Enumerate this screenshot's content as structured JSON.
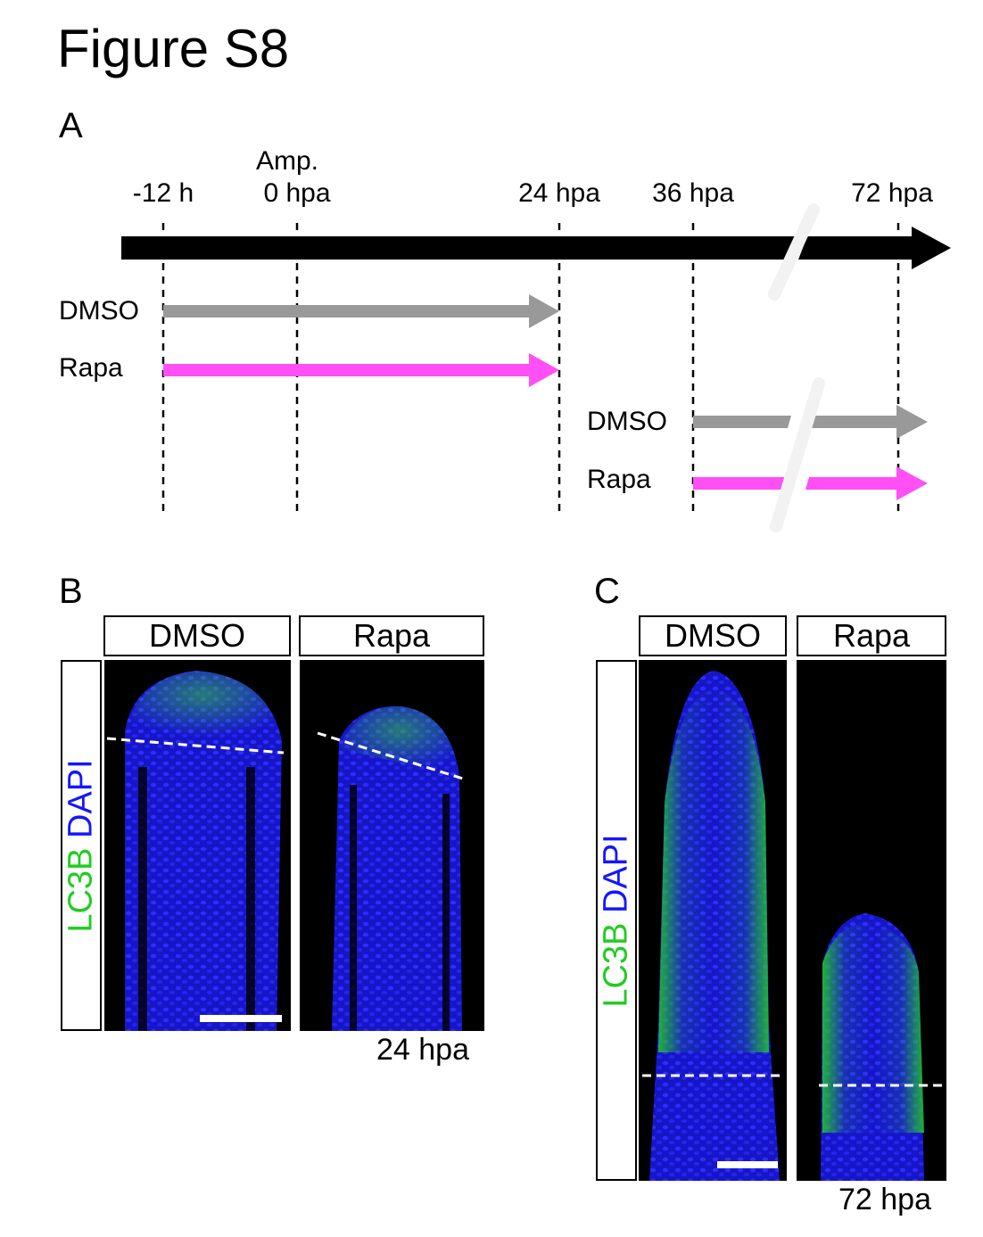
{
  "figure": {
    "title": "Figure S8"
  },
  "panel_a": {
    "letter": "A",
    "timepoints": {
      "minus12": "-12 h",
      "amp": "Amp.",
      "zero": "0 hpa",
      "h24": "24 hpa",
      "h36": "36 hpa",
      "h72": "72 hpa"
    },
    "treatments": {
      "dmso_early": "DMSO",
      "rapa_early": "Rapa",
      "dmso_late": "DMSO",
      "rapa_late": "Rapa"
    },
    "colors": {
      "timeline": "#000000",
      "dmso": "#999999",
      "rapa": "#ff4ff5"
    }
  },
  "panel_b": {
    "letter": "B",
    "conditions": [
      "DMSO",
      "Rapa"
    ],
    "stain": {
      "green": "LC3B",
      "blue": "DAPI"
    },
    "time": "24 hpa"
  },
  "panel_c": {
    "letter": "C",
    "conditions": [
      "DMSO",
      "Rapa"
    ],
    "stain": {
      "green": "LC3B",
      "blue": "DAPI"
    },
    "time": "72 hpa"
  },
  "stain_colors": {
    "green": "#22cc22",
    "blue": "#1515ff"
  }
}
